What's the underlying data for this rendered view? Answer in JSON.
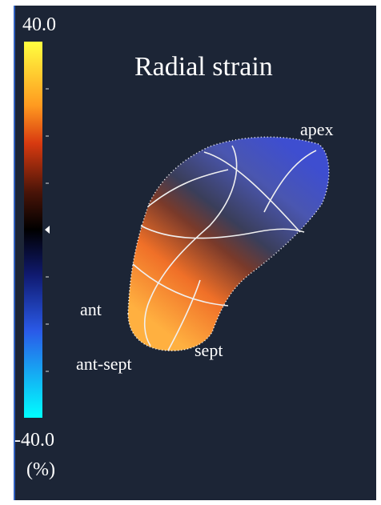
{
  "title": "Radial strain",
  "colorbar": {
    "max_label": "40.0",
    "min_label": "-40.0",
    "unit": "(%)"
  },
  "labels": {
    "apex": "apex",
    "ant": "ant",
    "ant_sept": "ant-sept",
    "sept": "sept"
  }
}
